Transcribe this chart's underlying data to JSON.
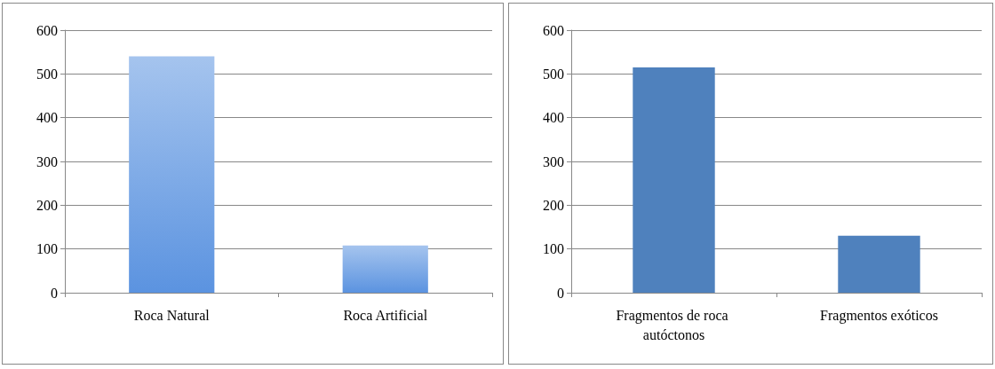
{
  "chart_data": [
    {
      "type": "bar",
      "categories": [
        "Roca Natural",
        "Roca Artificial"
      ],
      "values": [
        540,
        108
      ],
      "color": "#5b93e0",
      "ylim": [
        0,
        600
      ],
      "yticks": [
        0,
        100,
        200,
        300,
        400,
        500,
        600
      ],
      "grid": "y"
    },
    {
      "type": "bar",
      "categories": [
        "Fragmentos de roca autóctonos",
        "Fragmentos exóticos"
      ],
      "values": [
        515,
        130
      ],
      "color": "#4f81bd",
      "ylim": [
        0,
        600
      ],
      "yticks": [
        0,
        100,
        200,
        300,
        400,
        500,
        600
      ],
      "grid": "y"
    }
  ]
}
